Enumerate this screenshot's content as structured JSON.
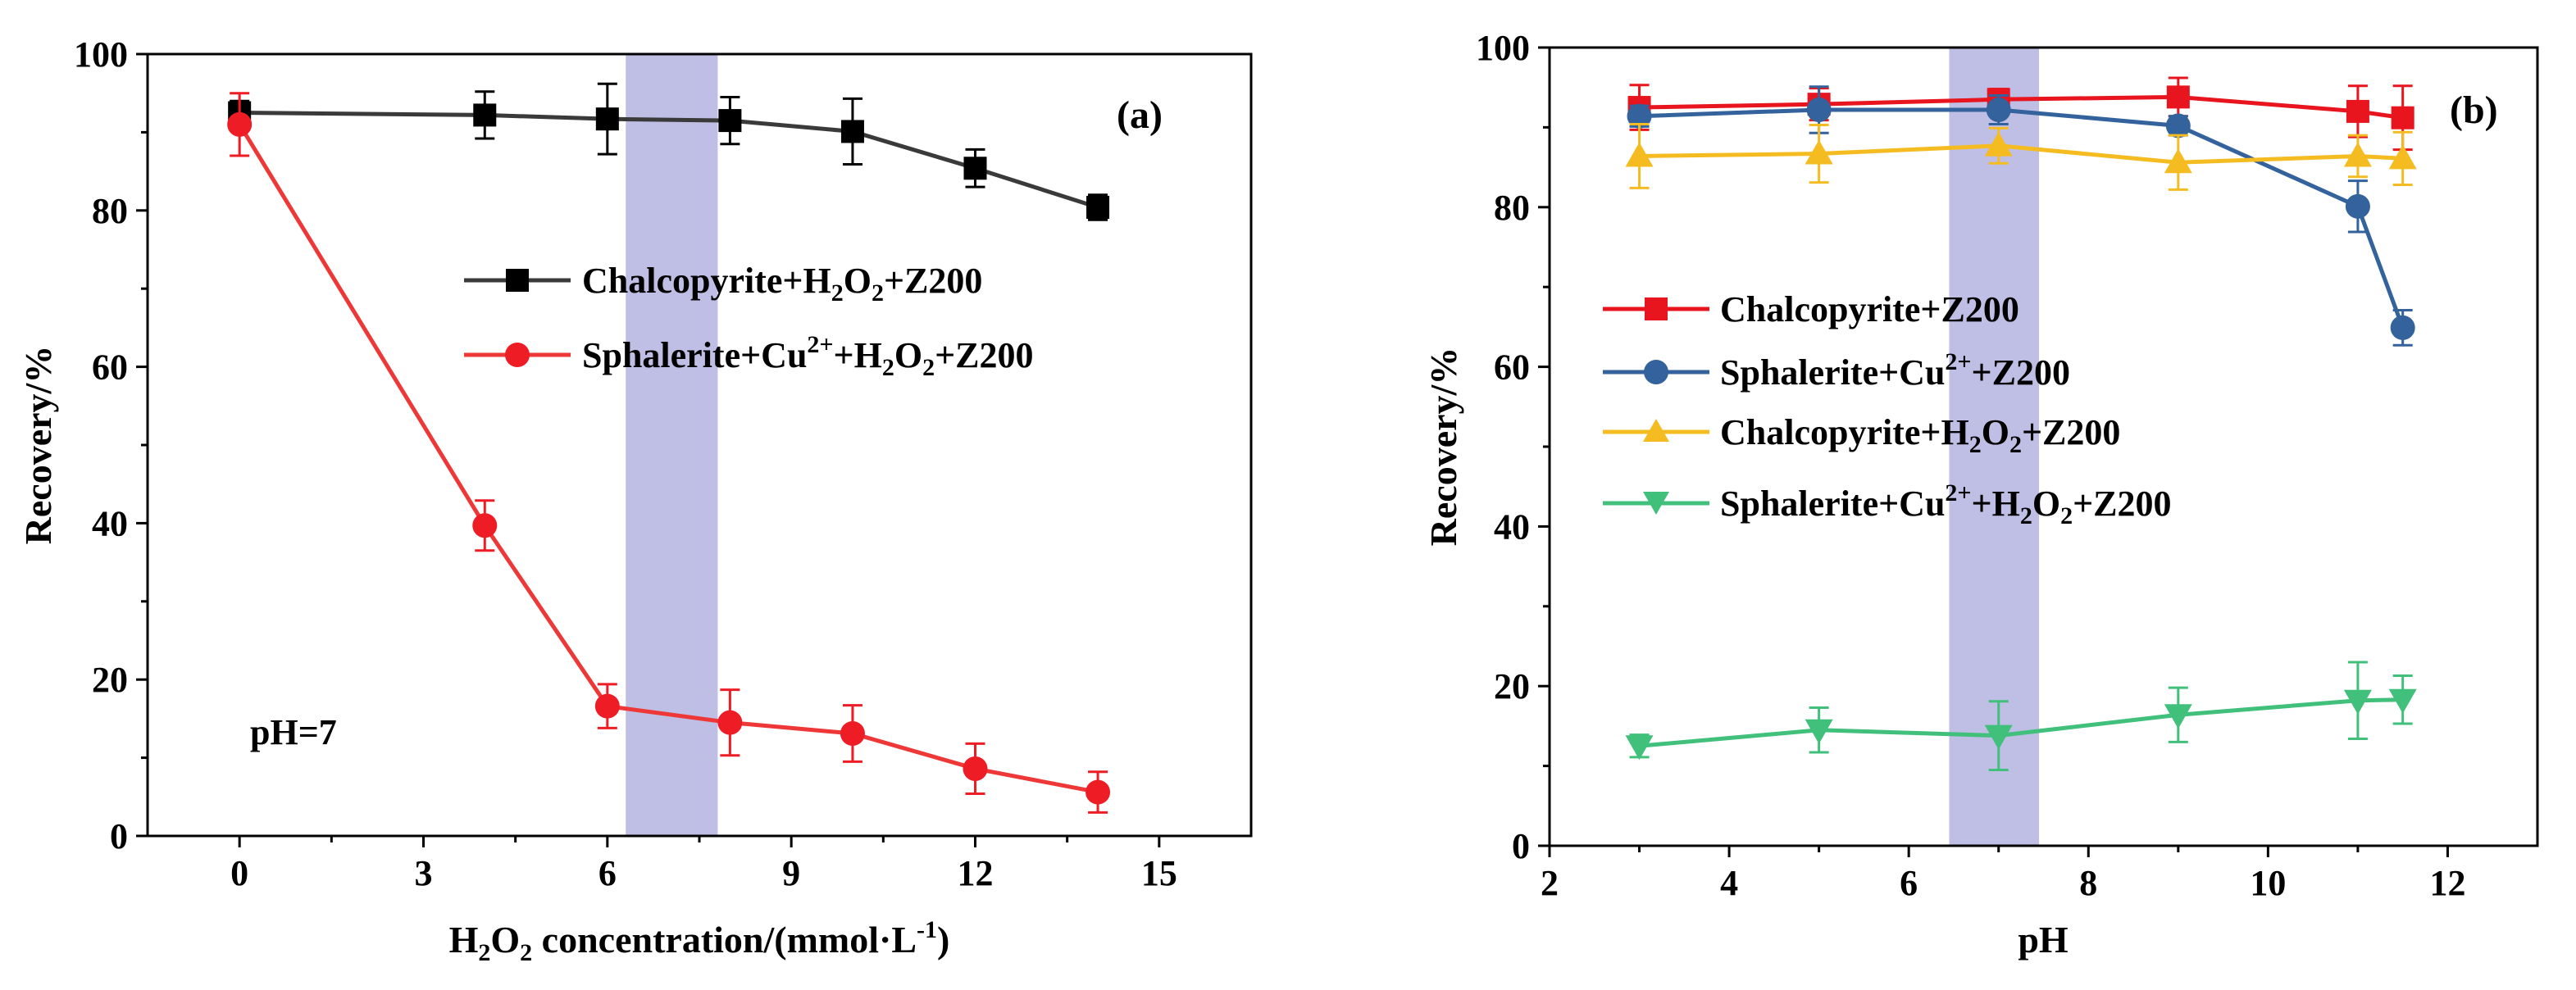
{
  "chart_data": [
    {
      "panel": "(a)",
      "type": "line",
      "xlabel_parts": {
        "pre": "H",
        "sub1": "2",
        "mid": "O",
        "sub2": "2",
        "text": " concentration/(mmol·L",
        "sup": "-1",
        "post": ")"
      },
      "ylabel": "Recovery/%",
      "xlim": [
        -1.5,
        16.5
      ],
      "ylim": [
        0,
        100
      ],
      "xticks": [
        0,
        3,
        6,
        9,
        12,
        15
      ],
      "yticks": [
        0,
        20,
        40,
        60,
        80,
        100
      ],
      "xtick_labels": [
        "0",
        "3",
        "6",
        "9",
        "12",
        "15"
      ],
      "ytick_labels": [
        "0",
        "20",
        "40",
        "60",
        "80",
        "100"
      ],
      "highlight_band": [
        6.3,
        7.8
      ],
      "annotation": "pH=7",
      "series": [
        {
          "name": "Chalcopyrite+H2O2+Z200",
          "label_parts": {
            "a": "Chalcopyrite+H",
            "b": "2",
            "c": "O",
            "d": "2",
            "e": "+Z200"
          },
          "color": "#3a3a3a",
          "marker": "square",
          "x": [
            0,
            4,
            6,
            8,
            10,
            12,
            14
          ],
          "y": [
            92.5,
            92.2,
            91.7,
            91.5,
            90.1,
            85.4,
            80.4
          ],
          "err": [
            1.5,
            3.0,
            4.5,
            3.0,
            4.2,
            2.4,
            1.6
          ]
        },
        {
          "name": "Sphalerite+Cu2++H2O2+Z200",
          "label_parts": {
            "a": "Sphalerite+Cu",
            "b": "2+",
            "c": "+H",
            "d": "2",
            "e": "O",
            "f": "2",
            "g": "+Z200"
          },
          "color": "#ee3838",
          "marker": "circle",
          "x": [
            0,
            4,
            6,
            8,
            10,
            12,
            14
          ],
          "y": [
            91.0,
            39.7,
            16.6,
            14.5,
            13.1,
            8.6,
            5.6
          ],
          "err": [
            4.0,
            3.2,
            2.8,
            4.2,
            3.6,
            3.2,
            2.6
          ]
        }
      ]
    },
    {
      "panel": "(b)",
      "type": "line",
      "xlabel": "pH",
      "ylabel": "Recovery/%",
      "xlim": [
        2,
        13
      ],
      "ylim": [
        0,
        100
      ],
      "xticks": [
        2,
        4,
        6,
        8,
        10,
        12
      ],
      "yticks": [
        0,
        20,
        40,
        60,
        80,
        100
      ],
      "xtick_labels": [
        "2",
        "4",
        "6",
        "8",
        "10",
        "12"
      ],
      "ytick_labels": [
        "0",
        "20",
        "40",
        "60",
        "80",
        "100"
      ],
      "highlight_band": [
        6.45,
        7.45
      ],
      "series": [
        {
          "name": "Chalcopyrite+Z200",
          "label_parts": {
            "a": "Chalcopyrite+Z200"
          },
          "color": "#e8141e",
          "marker": "square",
          "x": [
            3,
            5,
            7,
            9,
            11,
            11.5
          ],
          "y": [
            92.5,
            92.9,
            93.5,
            93.8,
            92.0,
            91.2
          ],
          "err": [
            2.8,
            2.0,
            1.3,
            2.4,
            3.2,
            4.0
          ]
        },
        {
          "name": "Sphalerite+Cu2++Z200",
          "label_parts": {
            "a": "Sphalerite+Cu",
            "b": "2+",
            "c": "+Z200"
          },
          "color": "#33629c",
          "marker": "circle",
          "x": [
            3,
            5,
            7,
            9,
            11,
            11.5
          ],
          "y": [
            91.4,
            92.2,
            92.2,
            90.2,
            80.1,
            64.9
          ],
          "err": [
            1.3,
            2.9,
            1.8,
            1.2,
            3.2,
            2.2
          ]
        },
        {
          "name": "Chalcopyrite+H2O2+Z200",
          "label_parts": {
            "a": "Chalcopyrite+H",
            "b": "2",
            "c": "O",
            "d": "2",
            "e": "+Z200"
          },
          "color": "#f5bc22",
          "marker": "triangle-up",
          "x": [
            3,
            5,
            7,
            9,
            11,
            11.5
          ],
          "y": [
            86.4,
            86.7,
            87.7,
            85.6,
            86.4,
            86.1
          ],
          "err": [
            4.0,
            3.6,
            2.2,
            3.4,
            2.6,
            3.3
          ]
        },
        {
          "name": "Sphalerite+Cu2++H2O2+Z200",
          "label_parts": {
            "a": "Sphalerite+Cu",
            "b": "2+",
            "c": "+H",
            "d": "2",
            "e": "O",
            "f": "2",
            "g": "+Z200"
          },
          "color": "#40c07a",
          "marker": "triangle-down",
          "x": [
            3,
            5,
            7,
            9,
            11,
            11.5
          ],
          "y": [
            12.5,
            14.5,
            13.8,
            16.4,
            18.2,
            18.3
          ],
          "err": [
            1.4,
            2.8,
            4.3,
            3.4,
            4.8,
            3.0
          ]
        }
      ]
    }
  ]
}
